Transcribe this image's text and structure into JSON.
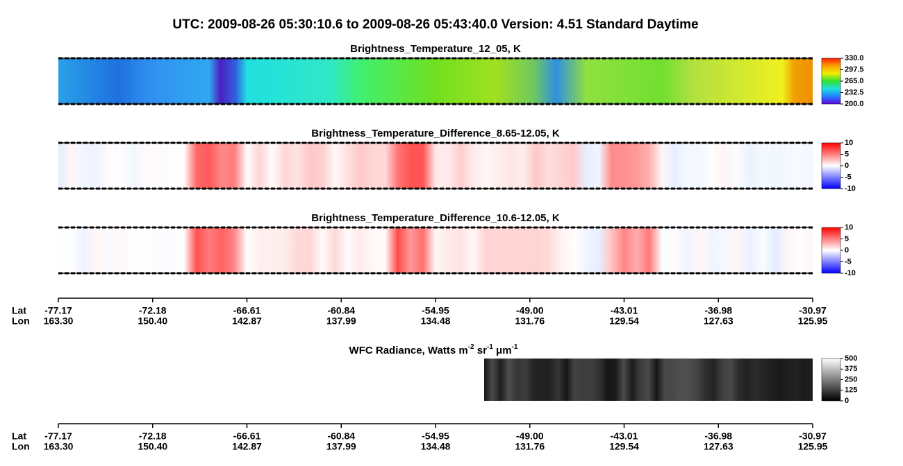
{
  "title": "UTC:  2009-08-26   05:30:10.6  to  2009-08-26   05:43:40.0    Version: 4.51  Standard Daytime",
  "panels": [
    {
      "title": "Brightness_Temperature_12_05, K",
      "colormap": [
        "#ff2000",
        "#ffa000",
        "#f0f000",
        "#30e030",
        "#20e0e0",
        "#2080ff",
        "#6000e0"
      ],
      "ticks": [
        {
          "value": 330,
          "label": "330.0"
        },
        {
          "value": 297.5,
          "label": "297.5"
        },
        {
          "value": 265,
          "label": "265.0"
        },
        {
          "value": 232.5,
          "label": "232.5"
        },
        {
          "value": 200,
          "label": "200.0"
        }
      ]
    },
    {
      "title": "Brightness_Temperature_Difference_8.65-12.05, K",
      "colormap": [
        "#ff0000",
        "#ff8080",
        "#ffffff",
        "#8080ff",
        "#0000ff"
      ],
      "ticks": [
        10,
        5,
        0,
        -5,
        -10
      ]
    },
    {
      "title": "Brightness_Temperature_Difference_10.6-12.05, K",
      "colormap": [
        "#ff0000",
        "#ff8080",
        "#ffffff",
        "#8080ff",
        "#0000ff"
      ],
      "ticks": [
        10,
        5,
        0,
        -5,
        -10
      ]
    }
  ],
  "axis": {
    "lat_name": "Lat",
    "lon_name": "Lon",
    "lat": [
      "-77.17",
      "-72.18",
      "-66.61",
      "-60.84",
      "-54.95",
      "-49.00",
      "-43.01",
      "-36.98",
      "-30.97"
    ],
    "lon": [
      "163.30",
      "150.40",
      "142.87",
      "137.99",
      "134.48",
      "131.76",
      "129.54",
      "127.63",
      "125.95"
    ]
  },
  "wfc": {
    "title_parts": [
      {
        "text": "WFC Radiance, Watts m",
        "sup": false
      },
      {
        "text": "-2",
        "sup": true
      },
      {
        "text": " sr",
        "sup": false
      },
      {
        "text": "-1",
        "sup": true
      },
      {
        "text": " μm",
        "sup": false
      },
      {
        "text": "-1",
        "sup": true
      }
    ],
    "colormap": [
      "#ffffff",
      "#000000"
    ],
    "ticks": [
      500,
      375,
      250,
      125,
      0
    ]
  }
}
